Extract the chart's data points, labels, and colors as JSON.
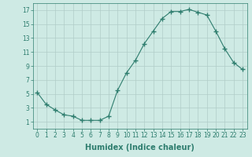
{
  "x": [
    0,
    1,
    2,
    3,
    4,
    5,
    6,
    7,
    8,
    9,
    10,
    11,
    12,
    13,
    14,
    15,
    16,
    17,
    18,
    19,
    20,
    21,
    22,
    23
  ],
  "y": [
    5.2,
    3.5,
    2.7,
    2.0,
    1.8,
    1.2,
    1.2,
    1.2,
    1.8,
    5.5,
    8.0,
    9.8,
    12.2,
    14.0,
    15.8,
    16.8,
    16.8,
    17.1,
    16.7,
    16.3,
    14.0,
    11.5,
    9.5,
    8.5
  ],
  "line_color": "#2e7d6e",
  "marker": "+",
  "marker_size": 4,
  "bg_color": "#ceeae4",
  "grid_color": "#b0cdc8",
  "xlabel": "Humidex (Indice chaleur)",
  "xlim": [
    -0.5,
    23.5
  ],
  "ylim": [
    0,
    18
  ],
  "yticks": [
    1,
    3,
    5,
    7,
    9,
    11,
    13,
    15,
    17
  ],
  "xticks": [
    0,
    1,
    2,
    3,
    4,
    5,
    6,
    7,
    8,
    9,
    10,
    11,
    12,
    13,
    14,
    15,
    16,
    17,
    18,
    19,
    20,
    21,
    22,
    23
  ],
  "tick_fontsize": 5.5,
  "label_fontsize": 7
}
